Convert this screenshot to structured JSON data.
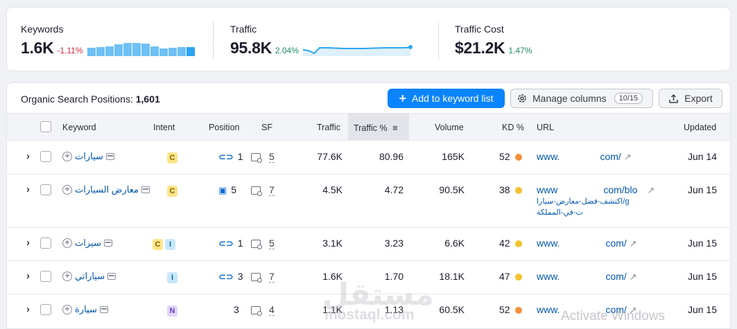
{
  "summary": {
    "keywords": {
      "label": "Keywords",
      "value": "1.6K",
      "change": "-1.11%",
      "bars": [
        0.55,
        0.6,
        0.65,
        0.75,
        0.85,
        0.85,
        0.8,
        0.65,
        0.5,
        0.55,
        0.6,
        0.58
      ]
    },
    "traffic": {
      "label": "Traffic",
      "value": "95.8K",
      "change": "2.04%"
    },
    "traffic_cost": {
      "label": "Traffic Cost",
      "value": "$21.2K",
      "change": "1.47%"
    }
  },
  "toolbar": {
    "title": "Organic Search Positions:",
    "count": "1,601",
    "add_label": "Add to keyword list",
    "manage_label": "Manage columns",
    "manage_badge": "10/15",
    "export_label": "Export"
  },
  "columns": {
    "keyword": "Keyword",
    "intent": "Intent",
    "position": "Position",
    "sf": "SF",
    "traffic": "Traffic",
    "traffic_pct": "Traffic %",
    "volume": "Volume",
    "kd": "KD %",
    "url": "URL",
    "updated": "Updated"
  },
  "rows": [
    {
      "keyword": "سيارات",
      "intents": [
        "C"
      ],
      "position_icon": "link-icon",
      "position": "1",
      "sf": "5",
      "traffic": "77.6K",
      "traffic_pct": "80.96",
      "volume": "165K",
      "kd": "52",
      "kd_color": "#f5903c",
      "url_start": "www.",
      "url_end": "com/",
      "url_extra": "",
      "updated": "Jun 14"
    },
    {
      "keyword": "معارض السيارات",
      "intents": [
        "C"
      ],
      "position_icon": "image-icon",
      "position": "5",
      "sf": "7",
      "traffic": "4.5K",
      "traffic_pct": "4.72",
      "volume": "90.5K",
      "kd": "38",
      "kd_color": "#f5c12e",
      "url_start": "www",
      "url_end": "com/blo",
      "url_extra_1": "اكتشف-فضل-معارض-سيارا/g",
      "url_extra_2": "ت-في-المملكة",
      "updated": "Jun 15"
    },
    {
      "keyword": "سيرات",
      "intents": [
        "C",
        "I"
      ],
      "position_icon": "link-icon",
      "position": "1",
      "sf": "5",
      "traffic": "3.1K",
      "traffic_pct": "3.23",
      "volume": "6.6K",
      "kd": "42",
      "kd_color": "#f5c12e",
      "url_start": "www.",
      "url_end": "com/",
      "updated": "Jun 15"
    },
    {
      "keyword": "سياراتي",
      "intents": [
        "I"
      ],
      "position_icon": "link-icon",
      "position": "3",
      "sf": "7",
      "traffic": "1.6K",
      "traffic_pct": "1.70",
      "volume": "18.1K",
      "kd": "47",
      "kd_color": "#f5c12e",
      "url_start": "www.",
      "url_end": "com/",
      "updated": "Jun 15"
    },
    {
      "keyword": "سيارة",
      "intents": [
        "N"
      ],
      "position_icon": "",
      "position": "3",
      "sf": "4",
      "traffic": "1.1K",
      "traffic_pct": "1.13",
      "volume": "60.5K",
      "kd": "52",
      "kd_color": "#f5903c",
      "url_start": "www.",
      "url_end": "com/",
      "updated": "Jun 15"
    }
  ],
  "overlay": {
    "watermark": "مستقل",
    "watermark_sub": "mostaql.com",
    "activate": "Activate Windows"
  }
}
